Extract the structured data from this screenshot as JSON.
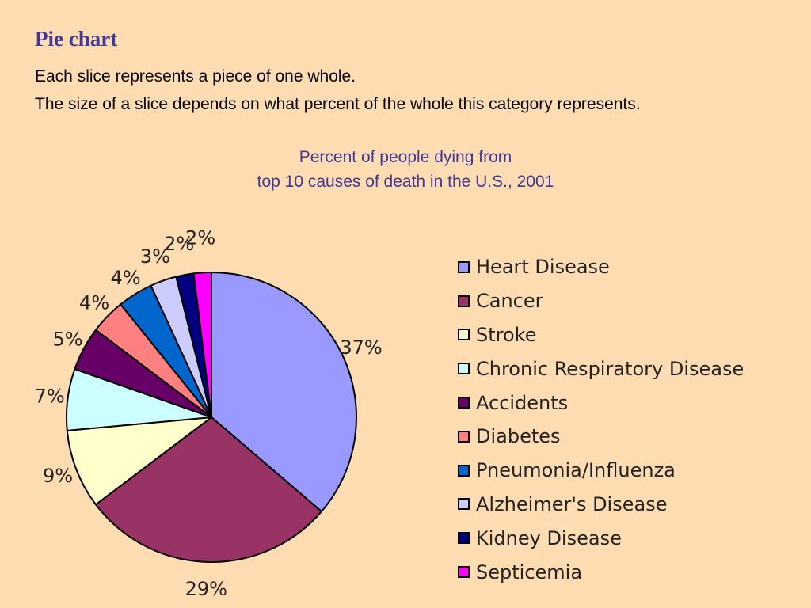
{
  "slide": {
    "title": "Pie chart",
    "line1": "Each slice represents a piece of one whole.",
    "line2": "The size of a slice depends on what percent of the whole this category represents."
  },
  "chart_data": {
    "type": "pie",
    "title": "Percent of people dying from",
    "subtitle": "top 10 causes of death in the U.S., 2001",
    "legend_position": "right",
    "slices": [
      {
        "label": "Heart Disease",
        "value": 37,
        "display": "37%",
        "color": "#9999ff"
      },
      {
        "label": "Cancer",
        "value": 29,
        "display": "29%",
        "color": "#993366"
      },
      {
        "label": "Stroke",
        "value": 9,
        "display": "9%",
        "color": "#ffffcc"
      },
      {
        "label": "Chronic Respiratory Disease",
        "value": 7,
        "display": "7%",
        "color": "#ccffff"
      },
      {
        "label": "Accidents",
        "value": 5,
        "display": "5%",
        "color": "#660066"
      },
      {
        "label": "Diabetes",
        "value": 4,
        "display": "4%",
        "color": "#ff8080"
      },
      {
        "label": "Pneumonia/Influenza",
        "value": 4,
        "display": "4%",
        "color": "#0066cc"
      },
      {
        "label": "Alzheimer's Disease",
        "value": 3,
        "display": "3%",
        "color": "#ccccff"
      },
      {
        "label": "Kidney Disease",
        "value": 2,
        "display": "2%",
        "color": "#000080"
      },
      {
        "label": "Septicemia",
        "value": 2,
        "display": "2%",
        "color": "#ff00ff"
      }
    ]
  }
}
